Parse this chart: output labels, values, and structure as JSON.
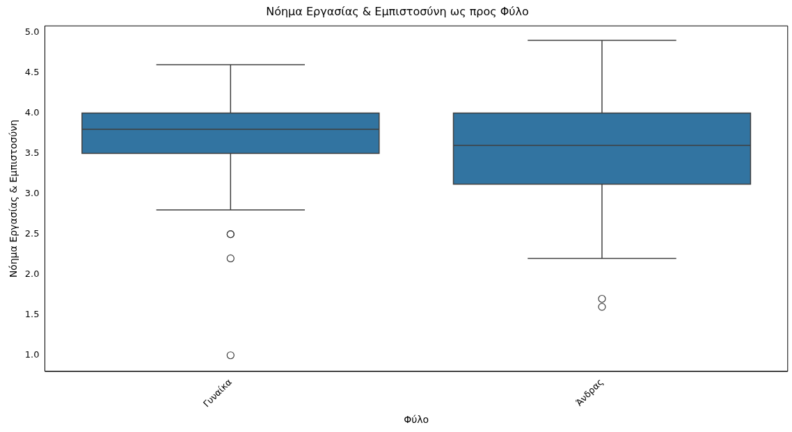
{
  "chart_data": {
    "type": "box",
    "title": "Νόημα Εργασίας & Εμπιστοσύνη ως προς Φύλο",
    "xlabel": "Φύλο",
    "ylabel": "Νόημα Εργασίας & Εμπιστοσύνη",
    "categories": [
      "Γυναίκα",
      "Άνδρας"
    ],
    "color": "#3274a1",
    "boxes": [
      {
        "low": 2.8,
        "q1": 3.5,
        "median": 3.8,
        "q3": 4.0,
        "high": 4.6,
        "outliers": [
          2.5,
          2.5,
          2.2,
          1.0
        ]
      },
      {
        "low": 2.2,
        "q1": 3.12,
        "median": 3.6,
        "q3": 4.0,
        "high": 4.9,
        "outliers": [
          1.7,
          1.6
        ]
      }
    ],
    "ylim": [
      0.8,
      5.08
    ],
    "yticks": [
      {
        "value": 1.0,
        "label": "1.0"
      },
      {
        "value": 1.5,
        "label": "1.5"
      },
      {
        "value": 2.0,
        "label": "2.0"
      },
      {
        "value": 2.5,
        "label": "2.5"
      },
      {
        "value": 3.0,
        "label": "3.0"
      },
      {
        "value": 3.5,
        "label": "3.5"
      },
      {
        "value": 4.0,
        "label": "4.0"
      },
      {
        "value": 4.5,
        "label": "4.5"
      },
      {
        "value": 5.0,
        "label": "5.0"
      }
    ],
    "grid": false,
    "legend": false
  }
}
